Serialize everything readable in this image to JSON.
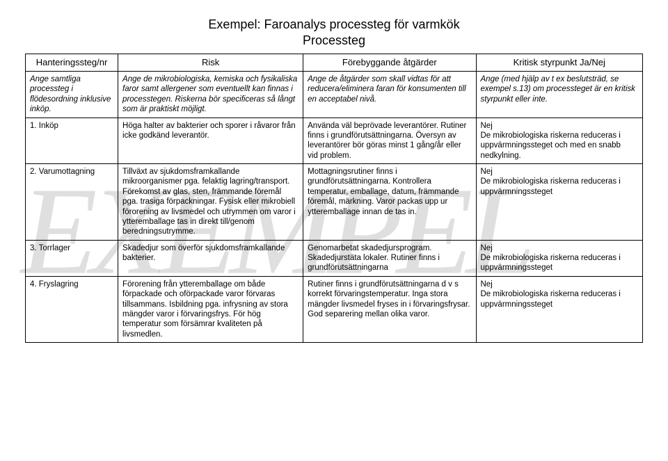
{
  "title_line1": "Exempel: Faroanalys processteg för varmkök",
  "title_line2": "Processteg",
  "watermark": "EXEMPEL",
  "headers": {
    "c1": "Hanteringssteg/nr",
    "c2": "Risk",
    "c3": "Förebyggande åtgärder",
    "c4": "Kritisk styrpunkt Ja/Nej"
  },
  "desc_row": {
    "c1": "Ange samtliga processteg i flödesordning inklusive inköp.",
    "c2": "Ange de mikrobiologiska, kemiska och fysikaliska faror samt allergener som eventuellt kan finnas i processtegen. Riskerna bör specificeras så långt som är praktiskt möjligt.",
    "c3": "Ange de åtgärder som skall vidtas för att reducera/eliminera faran för konsumenten till en acceptabel nivå.",
    "c4": "Ange (med hjälp av t ex beslutsträd, se exempel s.13) om processteget är en kritisk styrpunkt eller inte."
  },
  "rows": [
    {
      "c1": "1. Inköp",
      "c2": "Höga halter av bakterier och sporer i råvaror från icke godkänd leverantör.",
      "c3": "Använda väl beprövade leverantörer. Rutiner finns i grundförutsättningarna. Översyn av leverantörer bör göras minst 1 gång/år eller vid problem.",
      "c4": "Nej\nDe mikrobiologiska riskerna reduceras i uppvärmningssteget och med en snabb nedkylning."
    },
    {
      "c1": "2. Varumottagning",
      "c2": "Tillväxt av sjukdomsframkallande mikroorganismer pga. felaktig lagring/transport. Förekomst av glas, sten, främmande föremål pga. trasiga förpackningar. Fysisk eller mikrobiell förorening av livsmedel och utrymmen om varor i ytteremballage tas in direkt till/genom beredningsutrymme.",
      "c3": "Mottagningsrutiner finns i grundförutsättningarna. Kontrollera temperatur, emballage, datum, främmande föremål, märkning. Varor packas upp ur ytteremballage innan de tas in.",
      "c4": "Nej\nDe mikrobiologiska riskerna reduceras i uppvärmningssteget"
    },
    {
      "c1": "3. Torrlager",
      "c2": "Skadedjur som överför sjukdomsframkallande bakterier.",
      "c3": "Genomarbetat skadedjursprogram. Skadedjurstäta lokaler. Rutiner finns i grundförutsättningarna",
      "c4": "Nej\nDe mikrobiologiska riskerna reduceras i uppvärmningssteget"
    },
    {
      "c1": "4. Fryslagring",
      "c2": "Förorening från ytteremballage om både förpackade och oförpackade varor förvaras tillsammans. Isbildning pga. infrysning av stora mängder varor i förvaringsfrys. För hög temperatur som försämrar kvaliteten på livsmedlen.",
      "c3": "Rutiner finns i grundförutsättningarna d v s korrekt förvaringstemperatur. Inga stora mängder livsmedel fryses in i förvaringsfrysar. God separering mellan olika varor.",
      "c4": "Nej\nDe mikrobiologiska riskerna reduceras i uppvärmningssteget"
    }
  ]
}
